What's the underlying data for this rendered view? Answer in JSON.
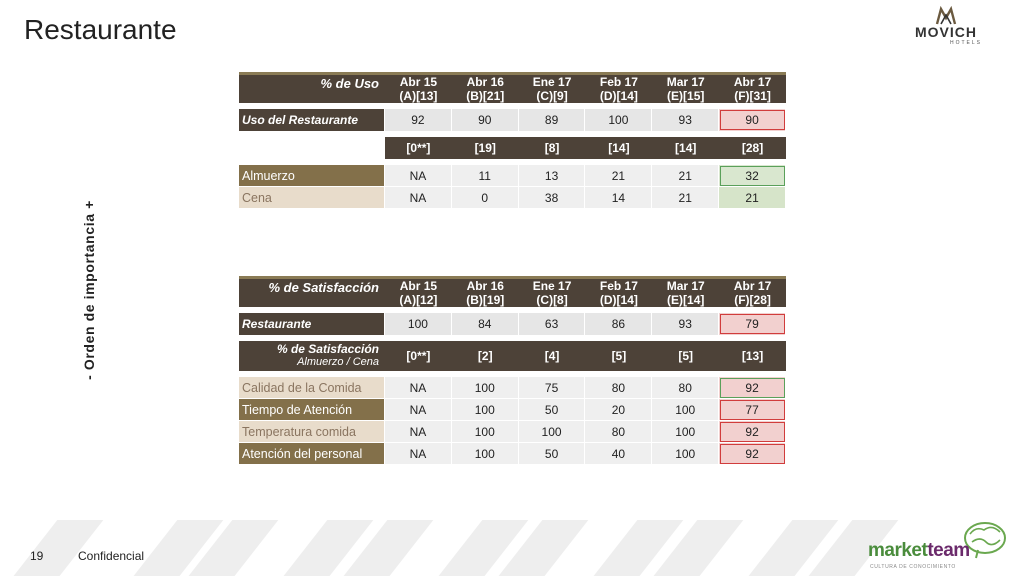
{
  "page": {
    "title": "Restaurante",
    "side_label": "-   Orden de importancia   +",
    "page_number": "19",
    "confidential": "Confidencial"
  },
  "logos": {
    "movich_name": "MOVICH",
    "movich_sub": "HOTELS",
    "marketteam_a": "market",
    "marketteam_b": "team",
    "marketteam_sub": "CULTURA DE CONOCIMIENTO"
  },
  "table_uso": {
    "header_label": "% de Uso",
    "columns": [
      {
        "line1": "Abr 15",
        "line2": "(A)[13]"
      },
      {
        "line1": "Abr 16",
        "line2": "(B)[21]"
      },
      {
        "line1": "Ene 17",
        "line2": "(C)[9]"
      },
      {
        "line1": "Feb 17",
        "line2": "(D)[14]"
      },
      {
        "line1": "Mar 17",
        "line2": "(E)[15]"
      },
      {
        "line1": "Abr 17",
        "line2": "(F)[31]"
      }
    ],
    "main_row": {
      "label": "Uso del Restaurante",
      "values": [
        "92",
        "90",
        "89",
        "100",
        "93",
        "90"
      ]
    },
    "sub_row": {
      "values": [
        "[0**]",
        "[19]",
        "[8]",
        "[14]",
        "[14]",
        "[28]"
      ]
    },
    "rows": [
      {
        "label": "Almuerzo",
        "values": [
          "NA",
          "11",
          "13",
          "21",
          "21",
          "32"
        ]
      },
      {
        "label": "Cena",
        "values": [
          "NA",
          "0",
          "38",
          "14",
          "21",
          "21"
        ]
      }
    ]
  },
  "table_sat": {
    "header_label": "% de Satisfacción",
    "columns": [
      {
        "line1": "Abr 15",
        "line2": "(A)[12]"
      },
      {
        "line1": "Abr 16",
        "line2": "(B)[19]"
      },
      {
        "line1": "Ene 17",
        "line2": "(C)[8]"
      },
      {
        "line1": "Feb 17",
        "line2": "(D)[14]"
      },
      {
        "line1": "Mar 17",
        "line2": "(E)[14]"
      },
      {
        "line1": "Abr 17",
        "line2": "(F)[28]"
      }
    ],
    "main_row": {
      "label": "Restaurante",
      "values": [
        "100",
        "84",
        "63",
        "86",
        "93",
        "79"
      ]
    },
    "sub_row": {
      "label": "% de Satisfacción",
      "sublabel": "Almuerzo / Cena",
      "values": [
        "[0**]",
        "[2]",
        "[4]",
        "[5]",
        "[5]",
        "[13]"
      ]
    },
    "rows": [
      {
        "label": "Calidad de la Comida",
        "values": [
          "NA",
          "100",
          "75",
          "80",
          "80",
          "92"
        ]
      },
      {
        "label": "Tiempo de Atención",
        "values": [
          "NA",
          "100",
          "50",
          "20",
          "100",
          "77"
        ]
      },
      {
        "label": "Temperatura comida",
        "values": [
          "NA",
          "100",
          "100",
          "80",
          "100",
          "92"
        ]
      },
      {
        "label": "Atención del personal",
        "values": [
          "NA",
          "100",
          "50",
          "40",
          "100",
          "92"
        ]
      }
    ]
  },
  "colors": {
    "header_dark": "#4d4238",
    "label_dark": "#83704a",
    "label_light": "#e8dccb",
    "highlight_red": "#d13c3c",
    "highlight_green": "#5aa05a"
  }
}
